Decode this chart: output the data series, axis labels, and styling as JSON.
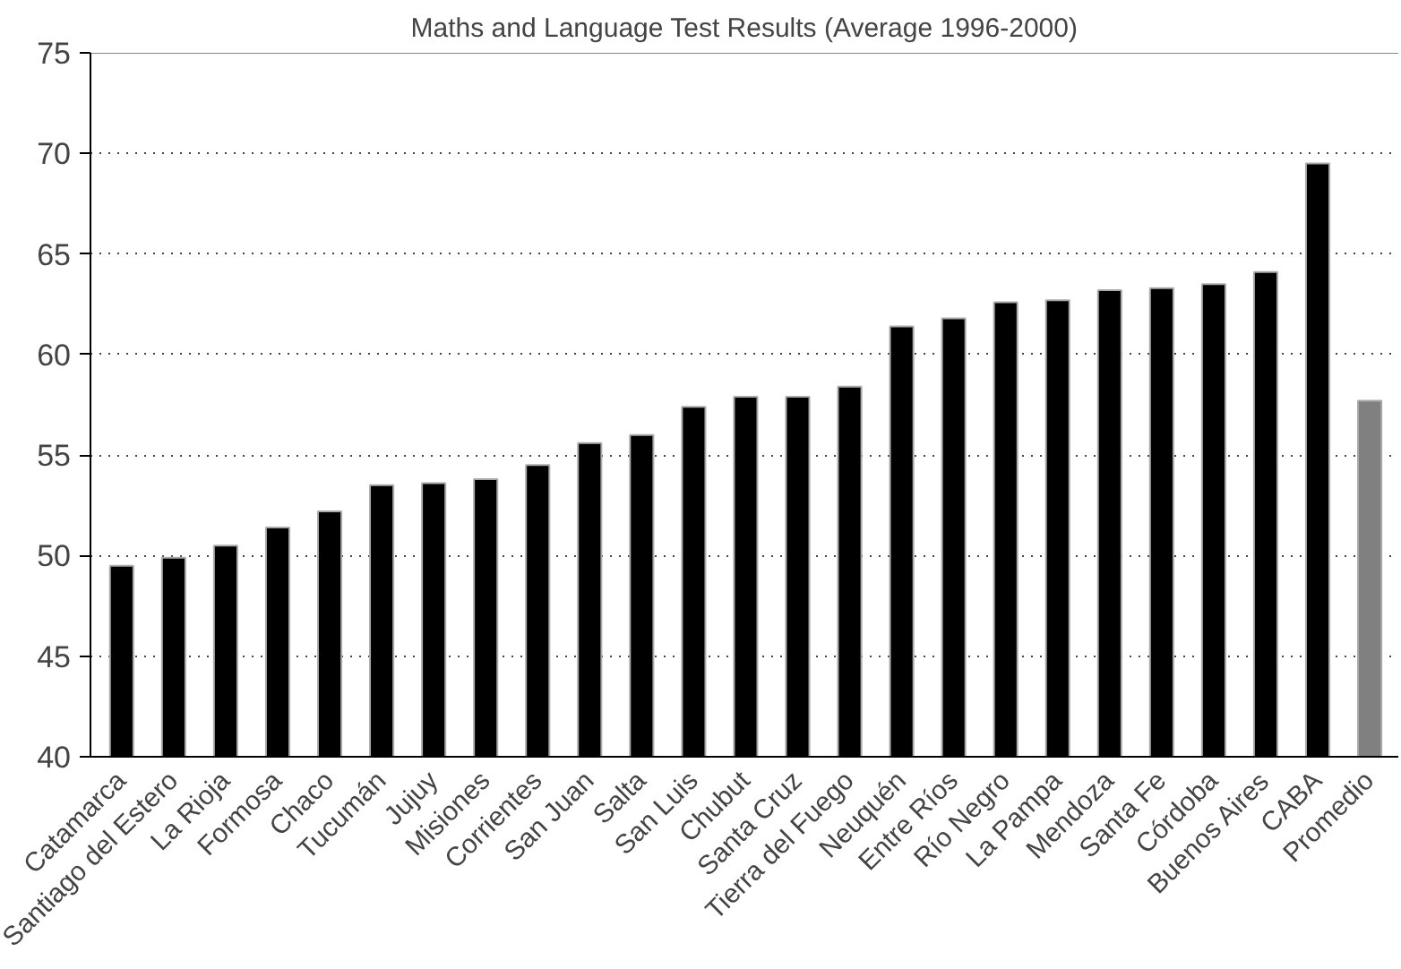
{
  "chart_data": {
    "type": "bar",
    "title": "Maths and Language Test Results (Average 1996-2000)",
    "categories": [
      "Catamarca",
      "Santiago del Estero",
      "La Rioja",
      "Formosa",
      "Chaco",
      "Tucumán",
      "Jujuy",
      "Misiones",
      "Corrientes",
      "San Juan",
      "Salta",
      "San Luis",
      "Chubut",
      "Santa Cruz",
      "Tierra del Fuego",
      "Neuquén",
      "Entre Ríos",
      "Río Negro",
      "La Pampa",
      "Mendoza",
      "Santa Fe",
      "Córdoba",
      "Buenos Aires",
      "CABA",
      "Promedio"
    ],
    "values": [
      49.5,
      49.9,
      50.5,
      51.4,
      52.2,
      53.5,
      53.6,
      53.8,
      54.5,
      55.6,
      56.0,
      57.4,
      57.9,
      57.9,
      58.4,
      61.4,
      61.8,
      62.6,
      62.7,
      63.2,
      63.3,
      63.5,
      64.1,
      69.5,
      57.7
    ],
    "colors": [
      "#000000",
      "#000000",
      "#000000",
      "#000000",
      "#000000",
      "#000000",
      "#000000",
      "#000000",
      "#000000",
      "#000000",
      "#000000",
      "#000000",
      "#000000",
      "#000000",
      "#000000",
      "#000000",
      "#000000",
      "#000000",
      "#000000",
      "#000000",
      "#000000",
      "#000000",
      "#000000",
      "#000000",
      "#808080"
    ],
    "ylim": [
      40,
      75
    ],
    "yticks": [
      40,
      45,
      50,
      55,
      60,
      65,
      70,
      75
    ],
    "grid": "y",
    "line_style": "dotted"
  }
}
